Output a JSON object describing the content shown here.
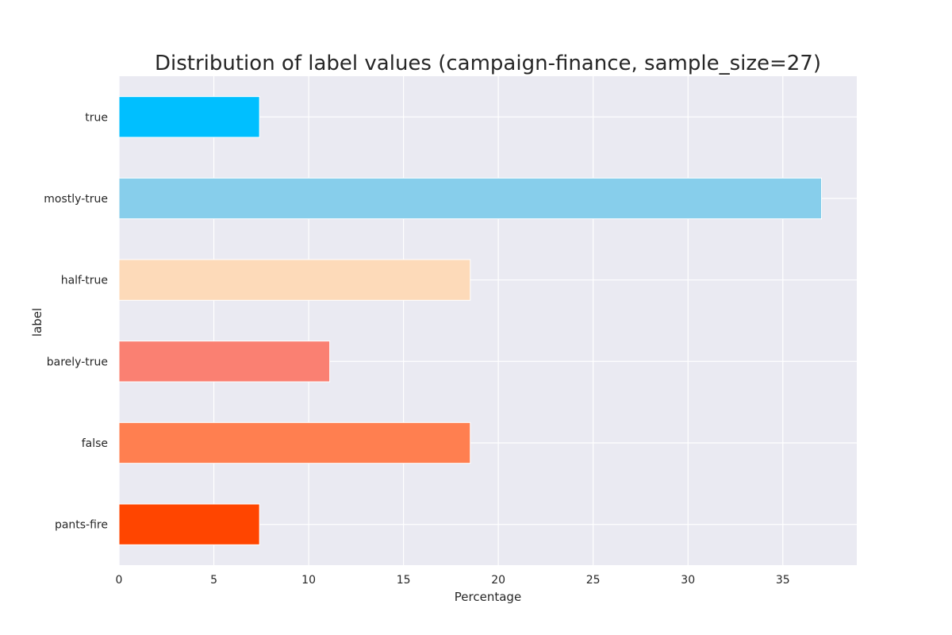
{
  "chart_data": {
    "type": "bar",
    "orientation": "horizontal",
    "title": "Distribution of label values (campaign-finance, sample_size=27)",
    "xlabel": "Percentage",
    "ylabel": "label",
    "xlim": [
      0,
      38.9
    ],
    "xticks": [
      0,
      5,
      10,
      15,
      20,
      25,
      30,
      35
    ],
    "grid": true,
    "background_color": "#EAEAF2",
    "grid_color": "#FFFFFF",
    "categories": [
      "true",
      "mostly-true",
      "half-true",
      "barely-true",
      "false",
      "pants-fire"
    ],
    "values": [
      7.41,
      37.04,
      18.52,
      11.11,
      18.52,
      7.41
    ],
    "colors": [
      "#00BFFF",
      "#87CEEB",
      "#FDDAB9",
      "#FA8072",
      "#FF7F50",
      "#FF4500"
    ]
  }
}
